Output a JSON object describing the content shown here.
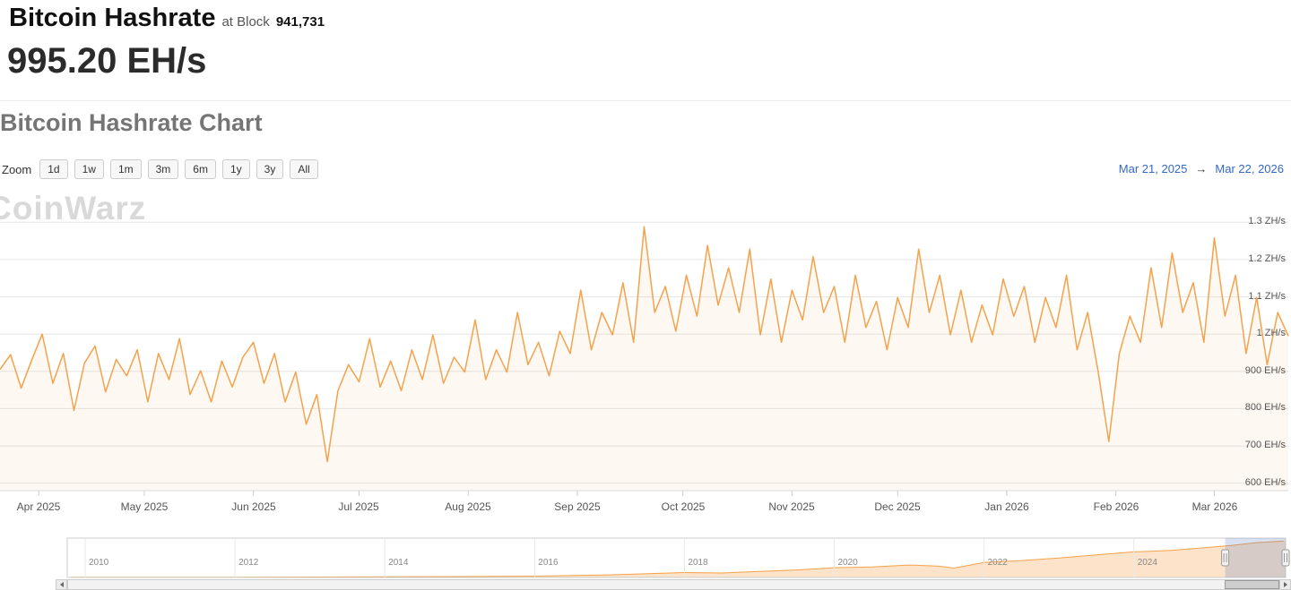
{
  "header": {
    "title": "Bitcoin Hashrate",
    "block_label": "at Block",
    "block_number": "941,731",
    "current_value": "995.20 EH/s"
  },
  "chart_section": {
    "title": "Bitcoin Hashrate Chart",
    "zoom_label": "Zoom",
    "zoom_buttons": [
      "1d",
      "1w",
      "1m",
      "3m",
      "6m",
      "1y",
      "3y",
      "All"
    ],
    "range_from": "Mar 21, 2025",
    "range_arrow": "→",
    "range_to": "Mar 22, 2026",
    "watermark": "CoinWarz"
  },
  "chart_data": {
    "type": "line",
    "title": "Bitcoin Hashrate Chart",
    "series_name": "Bitcoin Hashrate",
    "unit": "EH/s",
    "x_start": "Mar 21, 2025",
    "x_end": "Mar 22, 2026",
    "ylim": [
      580,
      1320
    ],
    "grid": true,
    "legend": false,
    "line_color": "#f4a24b",
    "fill_color": "rgba(244,162,75,0.07)",
    "y_axis_labels": [
      "1.3 ZH/s",
      "1.2 ZH/s",
      "1.1 ZH/s",
      "1 ZH/s",
      "900 EH/s",
      "800 EH/s",
      "700 EH/s",
      "600 EH/s"
    ],
    "y_ticks_ehs": [
      1300,
      1200,
      1100,
      1000,
      900,
      800,
      700,
      600
    ],
    "x_tick_labels": [
      "Apr 2025",
      "May 2025",
      "Jun 2025",
      "Jul 2025",
      "Aug 2025",
      "Sep 2025",
      "Oct 2025",
      "Nov 2025",
      "Dec 2025",
      "Jan 2026",
      "Feb 2026",
      "Mar 2026"
    ],
    "x_tick_days": [
      11,
      41,
      72,
      102,
      133,
      164,
      194,
      225,
      255,
      286,
      317,
      345
    ],
    "sample_interval_days": 3,
    "total_days": 366,
    "values_ehs": [
      905,
      945,
      855,
      930,
      1000,
      868,
      948,
      795,
      922,
      968,
      845,
      932,
      888,
      958,
      818,
      948,
      878,
      988,
      838,
      902,
      818,
      928,
      858,
      938,
      978,
      868,
      948,
      818,
      898,
      758,
      838,
      658,
      848,
      918,
      872,
      988,
      858,
      928,
      848,
      958,
      878,
      998,
      868,
      938,
      898,
      1038,
      878,
      958,
      898,
      1058,
      918,
      978,
      888,
      1008,
      948,
      1118,
      958,
      1058,
      998,
      1138,
      978,
      1288,
      1058,
      1128,
      1008,
      1158,
      1048,
      1238,
      1078,
      1178,
      1058,
      1228,
      998,
      1148,
      978,
      1118,
      1038,
      1208,
      1058,
      1128,
      978,
      1158,
      1018,
      1088,
      958,
      1098,
      1018,
      1228,
      1058,
      1158,
      998,
      1118,
      978,
      1078,
      998,
      1148,
      1048,
      1128,
      978,
      1098,
      1018,
      1158,
      958,
      1058,
      898,
      712,
      948,
      1048,
      978,
      1178,
      1018,
      1218,
      1058,
      1138,
      978,
      1258,
      1048,
      1158,
      948,
      1098,
      918,
      1058,
      995
    ]
  },
  "navigator": {
    "type": "area",
    "year_labels": [
      "2010",
      "2012",
      "2014",
      "2016",
      "2018",
      "2020",
      "2022",
      "2024"
    ],
    "profile": [
      [
        2009.8,
        0.005
      ],
      [
        2011,
        0.006
      ],
      [
        2012,
        0.008
      ],
      [
        2013,
        0.012
      ],
      [
        2014,
        0.02
      ],
      [
        2015,
        0.025
      ],
      [
        2016,
        0.035
      ],
      [
        2017,
        0.07
      ],
      [
        2018,
        0.13
      ],
      [
        2018.5,
        0.12
      ],
      [
        2019,
        0.16
      ],
      [
        2019.5,
        0.2
      ],
      [
        2020,
        0.26
      ],
      [
        2020.5,
        0.28
      ],
      [
        2021,
        0.33
      ],
      [
        2021.4,
        0.3
      ],
      [
        2021.6,
        0.25
      ],
      [
        2022,
        0.4
      ],
      [
        2022.5,
        0.45
      ],
      [
        2023,
        0.52
      ],
      [
        2023.5,
        0.6
      ],
      [
        2024,
        0.68
      ],
      [
        2024.5,
        0.72
      ],
      [
        2025,
        0.8
      ],
      [
        2025.3,
        0.85
      ],
      [
        2025.6,
        0.92
      ],
      [
        2026,
        0.97
      ]
    ],
    "selection_start_year": 2025.22,
    "selection_end_year": 2026.22
  },
  "colors": {
    "accent_orange": "#f4a24b",
    "link_blue": "#3567c4",
    "grid_gray": "#e6e6e6",
    "selection_blue": "rgba(102,133,194,0.25)"
  }
}
